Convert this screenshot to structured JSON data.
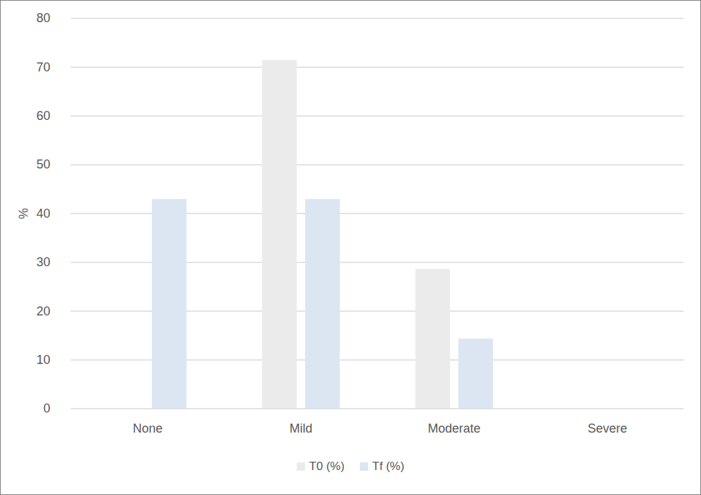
{
  "chart_data": {
    "type": "bar",
    "categories": [
      "None",
      "Mild",
      "Moderate",
      "Severe"
    ],
    "series": [
      {
        "name": "T0 (%)",
        "color": "#ebebeb",
        "values": [
          0,
          71.4,
          28.6,
          0
        ]
      },
      {
        "name": "Tf (%)",
        "color": "#dce6f2",
        "values": [
          42.9,
          42.9,
          14.3,
          0
        ]
      }
    ],
    "y_label": "%",
    "ylim": [
      0,
      80
    ],
    "yticks": [
      0,
      10,
      20,
      30,
      40,
      50,
      60,
      70,
      80
    ],
    "grid": true,
    "legend": "bottom"
  }
}
